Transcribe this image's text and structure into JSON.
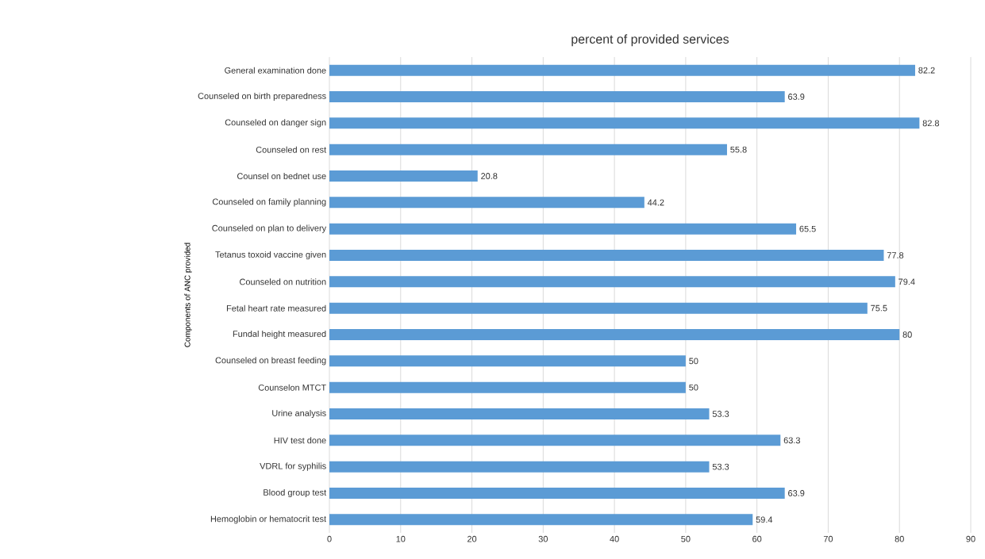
{
  "chart_data": {
    "type": "bar",
    "orientation": "horizontal",
    "title": "percent of provided services",
    "ylabel": "Components of ANC provided",
    "categories": [
      "General examination done",
      "Counseled on birth preparedness",
      "Counseled on danger sign",
      "Counseled on rest",
      "Counsel on bednet use",
      "Counseled on family planning",
      "Counseled on plan to delivery",
      "Tetanus toxoid vaccine given",
      "Counseled on nutrition",
      "Fetal heart rate measured",
      "Fundal height measured",
      "Counseled on breast feeding",
      "Counselon MTCT",
      "Urine analysis",
      "HIV test done",
      "VDRL for syphilis",
      "Blood group test",
      "Hemoglobin or hematocrit test"
    ],
    "values": [
      82.2,
      63.9,
      82.8,
      55.8,
      20.8,
      44.2,
      65.5,
      77.8,
      79.4,
      75.5,
      80,
      50,
      50,
      53.3,
      63.3,
      53.3,
      63.9,
      59.4
    ],
    "color": "#5b9bd5",
    "xlim": [
      0,
      90
    ],
    "xticks": [
      0,
      10,
      20,
      30,
      40,
      50,
      60,
      70,
      80,
      90
    ],
    "grid": "x",
    "data_labels": true
  }
}
